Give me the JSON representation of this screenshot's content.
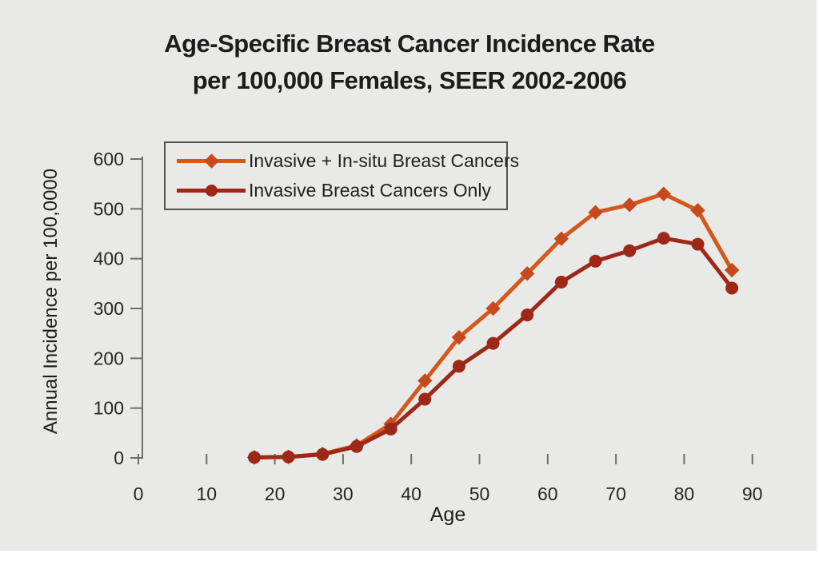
{
  "title": {
    "line1": "Age-Specific Breast Cancer Incidence Rate",
    "line2": "per 100,000 Females, SEER 2002-2006"
  },
  "axes": {
    "y_label": "Annual Incidence per 100,0000",
    "x_label": "Age",
    "y_ticks": [
      0,
      100,
      200,
      300,
      400,
      500,
      600
    ],
    "x_ticks": [
      0,
      10,
      20,
      30,
      40,
      50,
      60,
      70,
      80,
      90
    ]
  },
  "legend": {
    "items": [
      {
        "label": "Invasive + In-situ Breast Cancers",
        "color": "#d4581b",
        "marker": "diamond",
        "marker_color": "#c64a1d"
      },
      {
        "label": "Invasive Breast Cancers Only",
        "color": "#9e2817",
        "marker": "circle",
        "marker_color": "#9e2817"
      }
    ]
  },
  "chart_data": {
    "type": "line",
    "title": "Age-Specific Breast Cancer Incidence Rate per 100,000 Females, SEER 2002-2006",
    "xlabel": "Age",
    "ylabel": "Annual Incidence per 100,0000",
    "xlim": [
      0,
      95
    ],
    "ylim": [
      0,
      600
    ],
    "grid": false,
    "legend_position": "upper-left-inside",
    "x": [
      17,
      22,
      27,
      32,
      37,
      42,
      47,
      52,
      57,
      62,
      67,
      72,
      77,
      82,
      87
    ],
    "series": [
      {
        "name": "Invasive + In-situ Breast Cancers",
        "color": "#d4581b",
        "marker": "diamond",
        "marker_color": "#c64a1d",
        "values": [
          1,
          2,
          8,
          25,
          68,
          155,
          242,
          300,
          370,
          440,
          493,
          508,
          530,
          497,
          377
        ]
      },
      {
        "name": "Invasive Breast Cancers Only",
        "color": "#9e2817",
        "marker": "circle",
        "marker_color": "#9e2817",
        "values": [
          1,
          2,
          7,
          23,
          58,
          118,
          184,
          230,
          287,
          353,
          395,
          416,
          441,
          429,
          341
        ]
      }
    ]
  },
  "colors": {
    "background": "#e9e9e7",
    "text": "#1c1c1c",
    "axis": "#716d68"
  }
}
